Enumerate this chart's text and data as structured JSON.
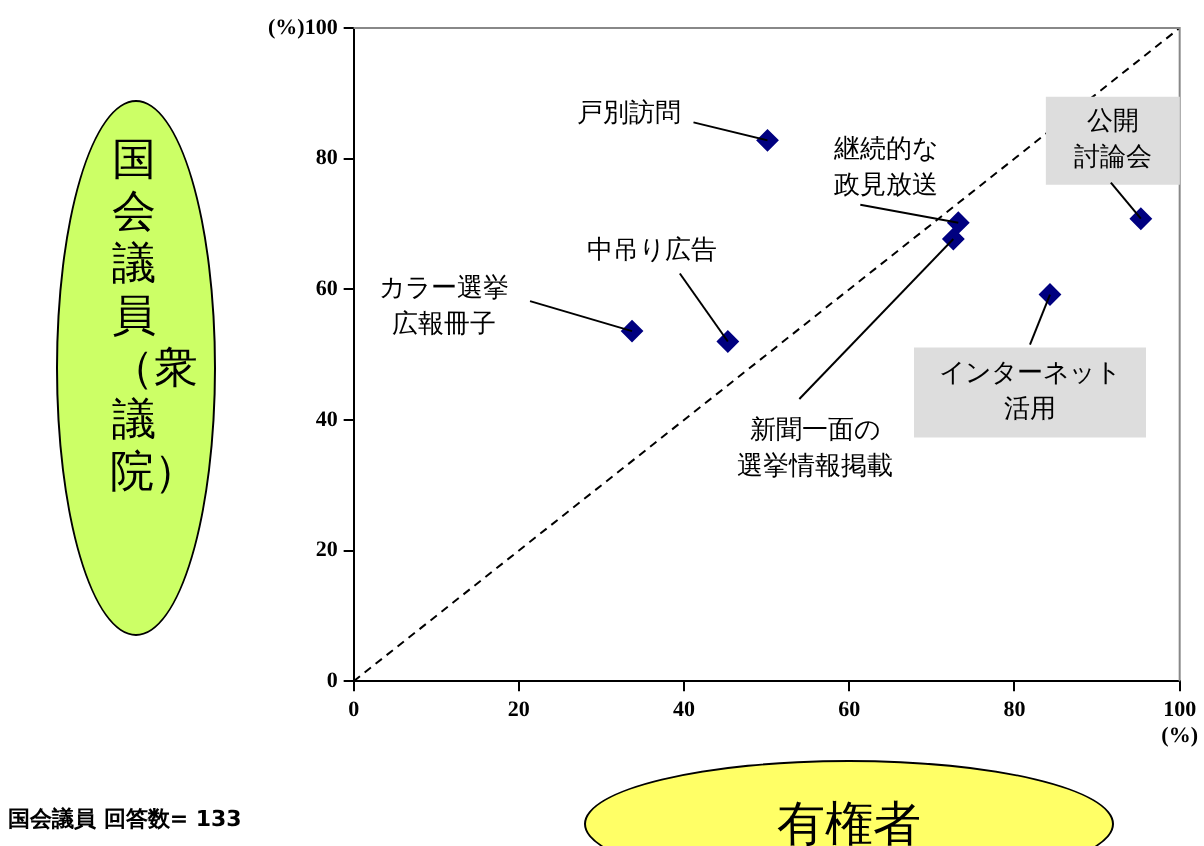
{
  "chart_data": {
    "type": "scatter",
    "xlabel": "有権者",
    "ylabel": "国会議員（衆議院）",
    "x": [
      50.1,
      73.2,
      72.6,
      95.3,
      84.3,
      33.7,
      45.3
    ],
    "series": [
      {
        "color": "#000080",
        "values": [
          82.8,
          70.2,
          67.7,
          70.8,
          59.2,
          53.6,
          52.0
        ],
        "marker": "diamond"
      },
      {
        "type": "line",
        "color": "#000000",
        "x": [
          0,
          100
        ],
        "values": [
          0,
          100
        ],
        "line_style": "dashed",
        "marker": "none"
      }
    ],
    "xlim": [
      0,
      100
    ],
    "ylim": [
      0,
      100
    ],
    "xticks": [
      0,
      20,
      40,
      60,
      80,
      {
        "value": 100,
        "label": "100\n(%)"
      }
    ],
    "yticks": [
      0,
      20,
      40,
      60,
      80,
      {
        "value": 100,
        "label": "(%)100"
      }
    ],
    "grid": false,
    "legend": false,
    "annotations": [
      {
        "text": "戸別訪問",
        "x": 50.1,
        "y": 82.8
      },
      {
        "text": "継続的な政見放送",
        "x": 73.2,
        "y": 70.2
      },
      {
        "text": "新聞一面の選挙情報掲載",
        "x": 72.6,
        "y": 67.7
      },
      {
        "text": "公開討論会",
        "x": 95.3,
        "y": 70.8
      },
      {
        "text": "インターネット活用",
        "x": 84.3,
        "y": 59.2
      },
      {
        "text": "カラー選挙広報冊子",
        "x": 33.7,
        "y": 53.6
      },
      {
        "text": "中吊り広告",
        "x": 45.3,
        "y": 52.0
      },
      "国会議員 回答数= 133"
    ]
  }
}
